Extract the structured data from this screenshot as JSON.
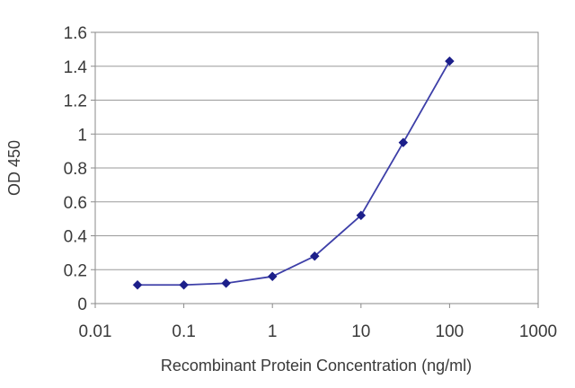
{
  "chart_data": {
    "type": "line",
    "title": "",
    "xlabel": "Recombinant Protein Concentration (ng/ml)",
    "ylabel": "OD 450",
    "x_scale": "log",
    "xlim": [
      0.01,
      1000
    ],
    "ylim": [
      0,
      1.6
    ],
    "x_ticks": [
      "0.01",
      "0.1",
      "1",
      "10",
      "100",
      "1000"
    ],
    "y_ticks": [
      "0",
      "0.2",
      "0.4",
      "0.6",
      "0.8",
      "1",
      "1.2",
      "1.4",
      "1.6"
    ],
    "grid": "horizontal",
    "legend": "none",
    "series": [
      {
        "color": "#3d3fa8",
        "marker": "diamond",
        "x": [
          0.03,
          0.1,
          0.3,
          1,
          3,
          10,
          30,
          100
        ],
        "y": [
          0.11,
          0.11,
          0.12,
          0.16,
          0.28,
          0.52,
          0.95,
          1.43
        ]
      }
    ]
  }
}
